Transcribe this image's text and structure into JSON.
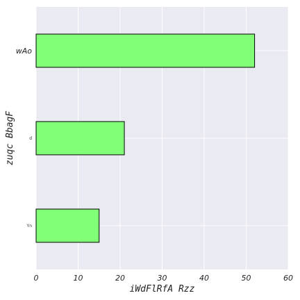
{
  "chart_data": {
    "type": "bar",
    "orientation": "horizontal",
    "categories": [
      "wAo",
      "d",
      "Yn"
    ],
    "values": [
      52,
      21,
      15
    ],
    "xlabel": "iWdFlRfA Rzz",
    "ylabel": "zuqc BbagF",
    "xlim": [
      0,
      60
    ],
    "xticks": [
      "0",
      "10",
      "20",
      "30",
      "40",
      "50",
      "60"
    ],
    "grid": true,
    "legend": "none",
    "colors": {
      "bar_fill": "#80ff77",
      "bar_edge": "#000000",
      "plot_background": "#eaeaf2",
      "grid": "#ffffff"
    }
  }
}
